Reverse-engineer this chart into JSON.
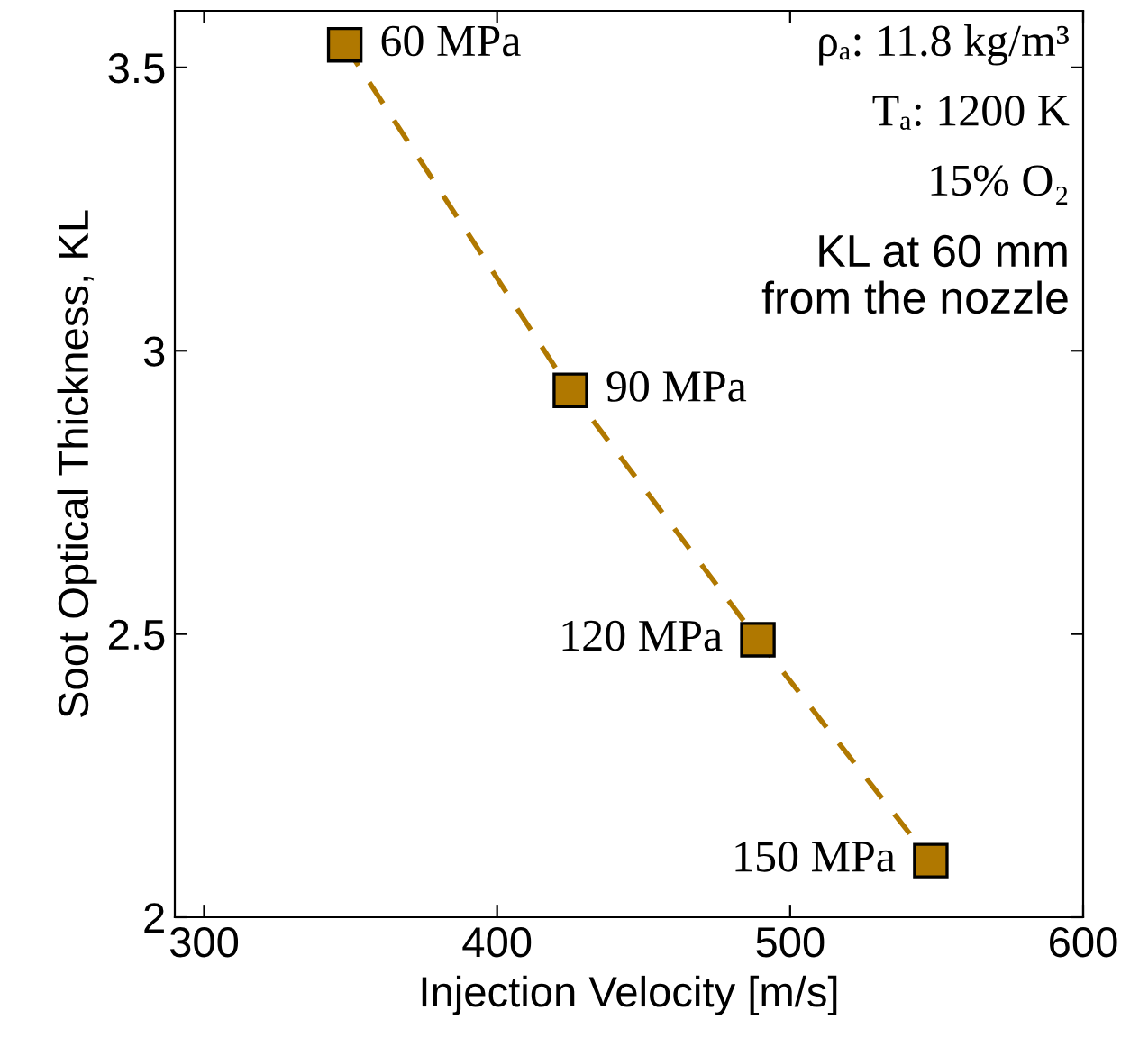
{
  "chart_data": {
    "type": "line",
    "xlabel": "Injection Velocity [m/s]",
    "ylabel": "Soot Optical Thickness, KL",
    "x": [
      348,
      425,
      489,
      548
    ],
    "series": [
      {
        "color": "#b07800",
        "values": [
          3.54,
          2.93,
          2.49,
          2.1
        ]
      }
    ],
    "marker": "square",
    "line_style": "dashed",
    "grid": false,
    "legend": false,
    "xlim": [
      290,
      600
    ],
    "xticks": [
      300,
      400,
      500,
      600
    ],
    "ylim": [
      2,
      3.6
    ],
    "yticks": [
      2,
      2.5,
      3,
      3.5
    ],
    "annotations": [
      {
        "text": "60 MPa",
        "x": 348,
        "y": 3.54
      },
      {
        "text": "90 MPa",
        "x": 425,
        "y": 2.93
      },
      {
        "text": "120 MPa",
        "x": 489,
        "y": 2.49
      },
      {
        "text": "150 MPa",
        "x": 548,
        "y": 2.1
      },
      "ρₐ: 11.8 kg/m³",
      "Tₐ: 1200 K",
      "15% O₂",
      "KL at 60 mm\nfrom the nozzle"
    ]
  }
}
